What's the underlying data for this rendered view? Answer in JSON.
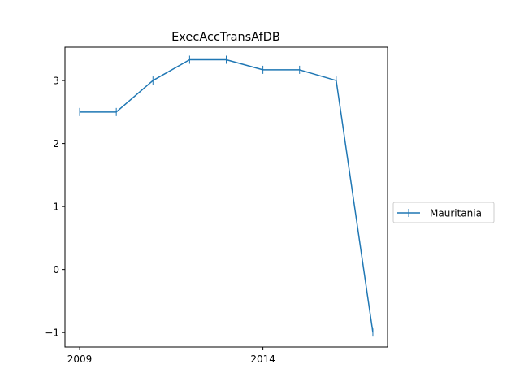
{
  "chart_data": {
    "type": "line",
    "title": "ExecAccTransAfDB",
    "xlabel": "",
    "ylabel": "",
    "x": [
      2009,
      2010,
      2011,
      2012,
      2013,
      2014,
      2015,
      2016,
      2017
    ],
    "series": [
      {
        "name": "Mauritania",
        "color": "#1f77b4",
        "marker": "vertical-tick",
        "values": [
          2.5,
          2.5,
          3.0,
          3.33,
          3.33,
          3.17,
          3.17,
          3.0,
          -1.0
        ]
      }
    ],
    "xlim": [
      2008.6,
      2017.4
    ],
    "ylim": [
      -1.23,
      3.53
    ],
    "xticks": [
      2009,
      2014
    ],
    "xtick_labels": [
      "2009",
      "2014"
    ],
    "yticks": [
      -1,
      0,
      1,
      2,
      3
    ],
    "ytick_labels": [
      "−1",
      "0",
      "1",
      "2",
      "3"
    ],
    "grid": false,
    "legend_position": "right-outside-center"
  }
}
